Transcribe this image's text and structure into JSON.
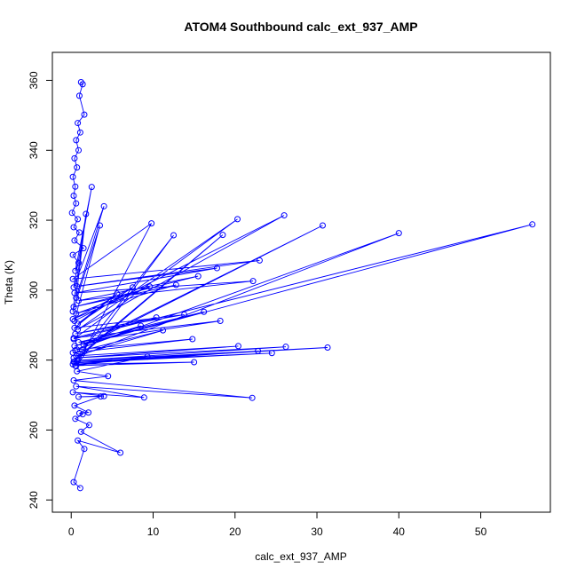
{
  "chart_data": {
    "type": "line",
    "title": "ATOM4 Southbound calc_ext_937_AMP",
    "xlabel": "calc_ext_937_AMP",
    "ylabel": "Theta (K)",
    "xlim": [
      -2.3,
      58.5
    ],
    "ylim": [
      236.5,
      368
    ],
    "xticks": [
      0,
      10,
      20,
      30,
      40,
      50
    ],
    "yticks": [
      240,
      260,
      280,
      300,
      320,
      340,
      360
    ],
    "grid": false,
    "legend": "none",
    "series": [
      {
        "marker": "open-circle",
        "line": true,
        "x": [
          1.2,
          1.4,
          1.0,
          1.6,
          0.8,
          1.1,
          0.6,
          0.9,
          0.4,
          0.7,
          0.2,
          0.5,
          0.3,
          0.6,
          0.1,
          0.8,
          0.3,
          1.0,
          0.4,
          1.5,
          0.2,
          0.9,
          0.5,
          2.5,
          0.3,
          4.0,
          0.6,
          1.8,
          0.2,
          3.5,
          0.4,
          26.0,
          0.8,
          20.3,
          0.3,
          56.3,
          1.5,
          30.7,
          0.5,
          40.0,
          0.9,
          18.5,
          0.3,
          12.5,
          0.6,
          9.8,
          0.2,
          23.0,
          0.7,
          17.8,
          0.4,
          22.2,
          0.9,
          15.5,
          0.3,
          12.8,
          0.6,
          9.6,
          0.2,
          7.5,
          0.8,
          5.6,
          0.4,
          13.8,
          0.5,
          10.4,
          0.3,
          18.2,
          0.9,
          16.2,
          0.4,
          8.5,
          0.7,
          14.8,
          0.2,
          11.2,
          0.6,
          20.4,
          0.3,
          26.2,
          0.8,
          31.3,
          0.4,
          24.5,
          0.6,
          22.8,
          0.2,
          15.0,
          0.5,
          9.3,
          0.7,
          4.5,
          0.3,
          22.1,
          0.6,
          8.9,
          0.2,
          4.0,
          0.9,
          3.6,
          0.4,
          2.1,
          1.0,
          1.4,
          0.5,
          2.2,
          1.2,
          6.0,
          0.8,
          1.6,
          0.3,
          1.1
        ],
        "y": [
          359.5,
          358.9,
          355.6,
          350.2,
          347.8,
          345.1,
          342.9,
          340.0,
          337.7,
          335.1,
          332.4,
          329.6,
          327.0,
          324.8,
          322.1,
          320.3,
          318.0,
          316.5,
          314.2,
          312.0,
          310.1,
          307.8,
          305.5,
          329.5,
          300.8,
          324.0,
          297.8,
          321.8,
          293.9,
          318.5,
          291.2,
          321.4,
          288.7,
          320.3,
          286.0,
          318.8,
          284.4,
          318.5,
          282.8,
          316.3,
          281.1,
          315.8,
          279.5,
          315.7,
          278.3,
          319.1,
          303.2,
          308.5,
          301.1,
          306.3,
          299.2,
          302.6,
          297.0,
          304.0,
          295.2,
          301.5,
          293.3,
          301.0,
          291.7,
          300.8,
          290.4,
          299.0,
          289.2,
          293.0,
          287.5,
          292.2,
          286.3,
          291.2,
          285.1,
          293.8,
          284.0,
          289.8,
          283.0,
          286.0,
          282.1,
          288.5,
          281.2,
          284.0,
          280.6,
          283.8,
          279.9,
          283.6,
          279.5,
          282.0,
          279.2,
          282.6,
          278.8,
          279.4,
          278.4,
          281.0,
          276.8,
          275.4,
          274.2,
          269.2,
          272.5,
          269.3,
          270.8,
          269.7,
          269.5,
          269.6,
          267.0,
          265.0,
          264.8,
          264.5,
          263.2,
          261.4,
          259.5,
          253.5,
          257.0,
          254.6,
          245.1,
          243.4
        ]
      }
    ]
  }
}
